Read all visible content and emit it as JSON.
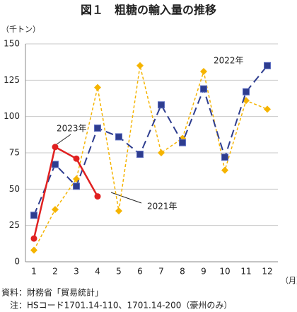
{
  "chart_data": {
    "type": "line",
    "title": "図１　粗糖の輸入量の推移",
    "y_unit_label": "（千トン）",
    "x_unit_label": "（月）",
    "categories": [
      "1",
      "2",
      "3",
      "4",
      "5",
      "6",
      "7",
      "8",
      "9",
      "10",
      "11",
      "12"
    ],
    "series": [
      {
        "name": "2021年",
        "color": "#f5b400",
        "marker": "diamond",
        "dash": "4,3",
        "values": [
          8,
          36,
          57,
          120,
          35,
          135,
          75,
          85,
          131,
          63,
          111,
          105
        ]
      },
      {
        "name": "2022年",
        "color": "#2e3d8f",
        "marker": "square",
        "dash": "11,6",
        "values": [
          32,
          67,
          52,
          92,
          86,
          74,
          108,
          82,
          119,
          72,
          117,
          135
        ]
      },
      {
        "name": "2023年",
        "color": "#e02020",
        "marker": "circle",
        "dash": "none",
        "values": [
          16,
          79,
          71,
          45,
          null,
          null,
          null,
          null,
          null,
          null,
          null,
          null
        ]
      }
    ],
    "ylim": [
      0,
      150
    ],
    "yticks": [
      0,
      25,
      50,
      75,
      100,
      125,
      150
    ],
    "grid": true,
    "notes": [
      "資料：財務省「貿易統計」",
      "注：HSコード1701.14-110、1701.14-200（豪州のみ）"
    ]
  }
}
